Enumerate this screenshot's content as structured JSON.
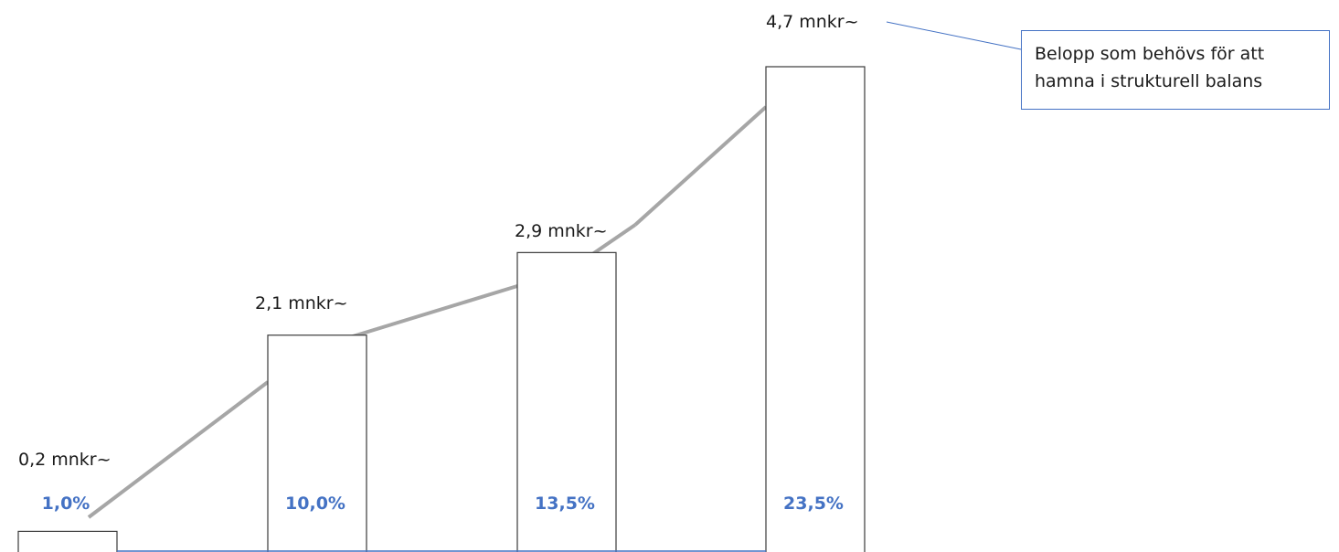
{
  "chart_data": {
    "type": "bar",
    "categories": [
      "",
      "",
      "",
      ""
    ],
    "values": [
      0.2,
      2.1,
      2.9,
      4.7
    ],
    "value_labels": [
      "0,2 mnkr~",
      "2,1 mnkr~",
      "2,9 mnkr~",
      "4,7 mnkr~"
    ],
    "percent_labels": [
      "1,0%",
      "10,0%",
      "13,5%",
      "23,5%"
    ],
    "ylim": [
      0,
      4.7
    ],
    "grid": false,
    "colors": {
      "bar_fill": "#ffffff",
      "bar_stroke": "#3a3a3a",
      "trend_line": "#a6a6a6",
      "percent_text": "#4472c4",
      "baseline": "#4472c4",
      "callout_border": "#4472c4"
    },
    "annotation": {
      "text_line1": "Belopp som behövs för att",
      "text_line2": "hamna i strukturell balans"
    }
  }
}
